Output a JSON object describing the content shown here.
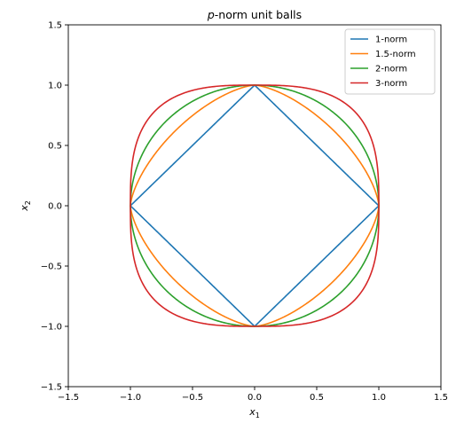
{
  "chart_data": {
    "type": "line",
    "title_italic": "p",
    "title_rest": "-norm unit balls",
    "xlabel_main": "x",
    "xlabel_sub": "1",
    "ylabel_main": "x",
    "ylabel_sub": "2",
    "xlim": [
      -1.5,
      1.5
    ],
    "ylim": [
      -1.5,
      1.5
    ],
    "xticks": [
      -1.5,
      -1.0,
      -0.5,
      0.0,
      0.5,
      1.0,
      1.5
    ],
    "yticks": [
      -1.5,
      -1.0,
      -0.5,
      0.0,
      0.5,
      1.0,
      1.5
    ],
    "xtick_labels": [
      "−1.5",
      "−1.0",
      "−0.5",
      "0.0",
      "0.5",
      "1.0",
      "1.5"
    ],
    "ytick_labels": [
      "−1.5",
      "−1.0",
      "−0.5",
      "0.0",
      "0.5",
      "1.0",
      "1.5"
    ],
    "grid": false,
    "legend_position": "top-right",
    "series": [
      {
        "name": "1-norm",
        "p": 1,
        "color": "#1f77b4"
      },
      {
        "name": "1.5-norm",
        "p": 1.5,
        "color": "#ff7f0e"
      },
      {
        "name": "2-norm",
        "p": 2,
        "color": "#2ca02c"
      },
      {
        "name": "3-norm",
        "p": 3,
        "color": "#d62728"
      }
    ]
  }
}
